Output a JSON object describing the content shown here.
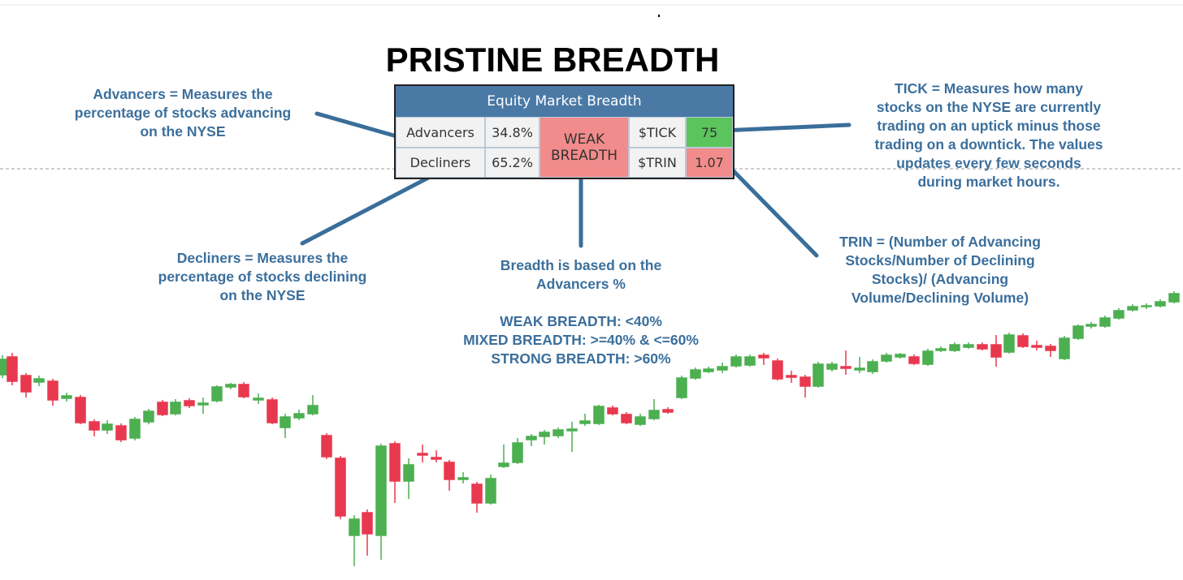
{
  "title": "PRISTINE BREADTH",
  "table": {
    "header": "Equity Market Breadth",
    "rows": [
      [
        "Advancers",
        "34.8%",
        "$TICK",
        "75"
      ],
      [
        "Decliners",
        "65.2%",
        "$TRIN",
        "1.07"
      ]
    ],
    "status": "WEAK BREADTH"
  },
  "annotations": {
    "advancers": [
      "Advancers = Measures the",
      "percentage of stocks advancing",
      "on the NYSE"
    ],
    "decliners": [
      "Decliners = Measures the",
      "percentage of stocks declining",
      "on the NYSE"
    ],
    "breadth": {
      "description": [
        "Breadth is based on the",
        "Advancers %"
      ],
      "levels": [
        "WEAK BREADTH: <40%",
        "MIXED BREADTH: >=40% & <=60%",
        "STRONG BREADTH: >60%"
      ]
    },
    "tick": [
      "TICK = Measures how many",
      "stocks on the NYSE are currently",
      "trading on an uptick minus those",
      "trading on a downtick. The values",
      "updates every few seconds",
      "during market hours."
    ],
    "trin": [
      "TRIN = (Number of Advancing",
      "Stocks/Number of Declining",
      "Stocks)/ (Advancing",
      "Volume/Declining Volume)"
    ]
  }
}
